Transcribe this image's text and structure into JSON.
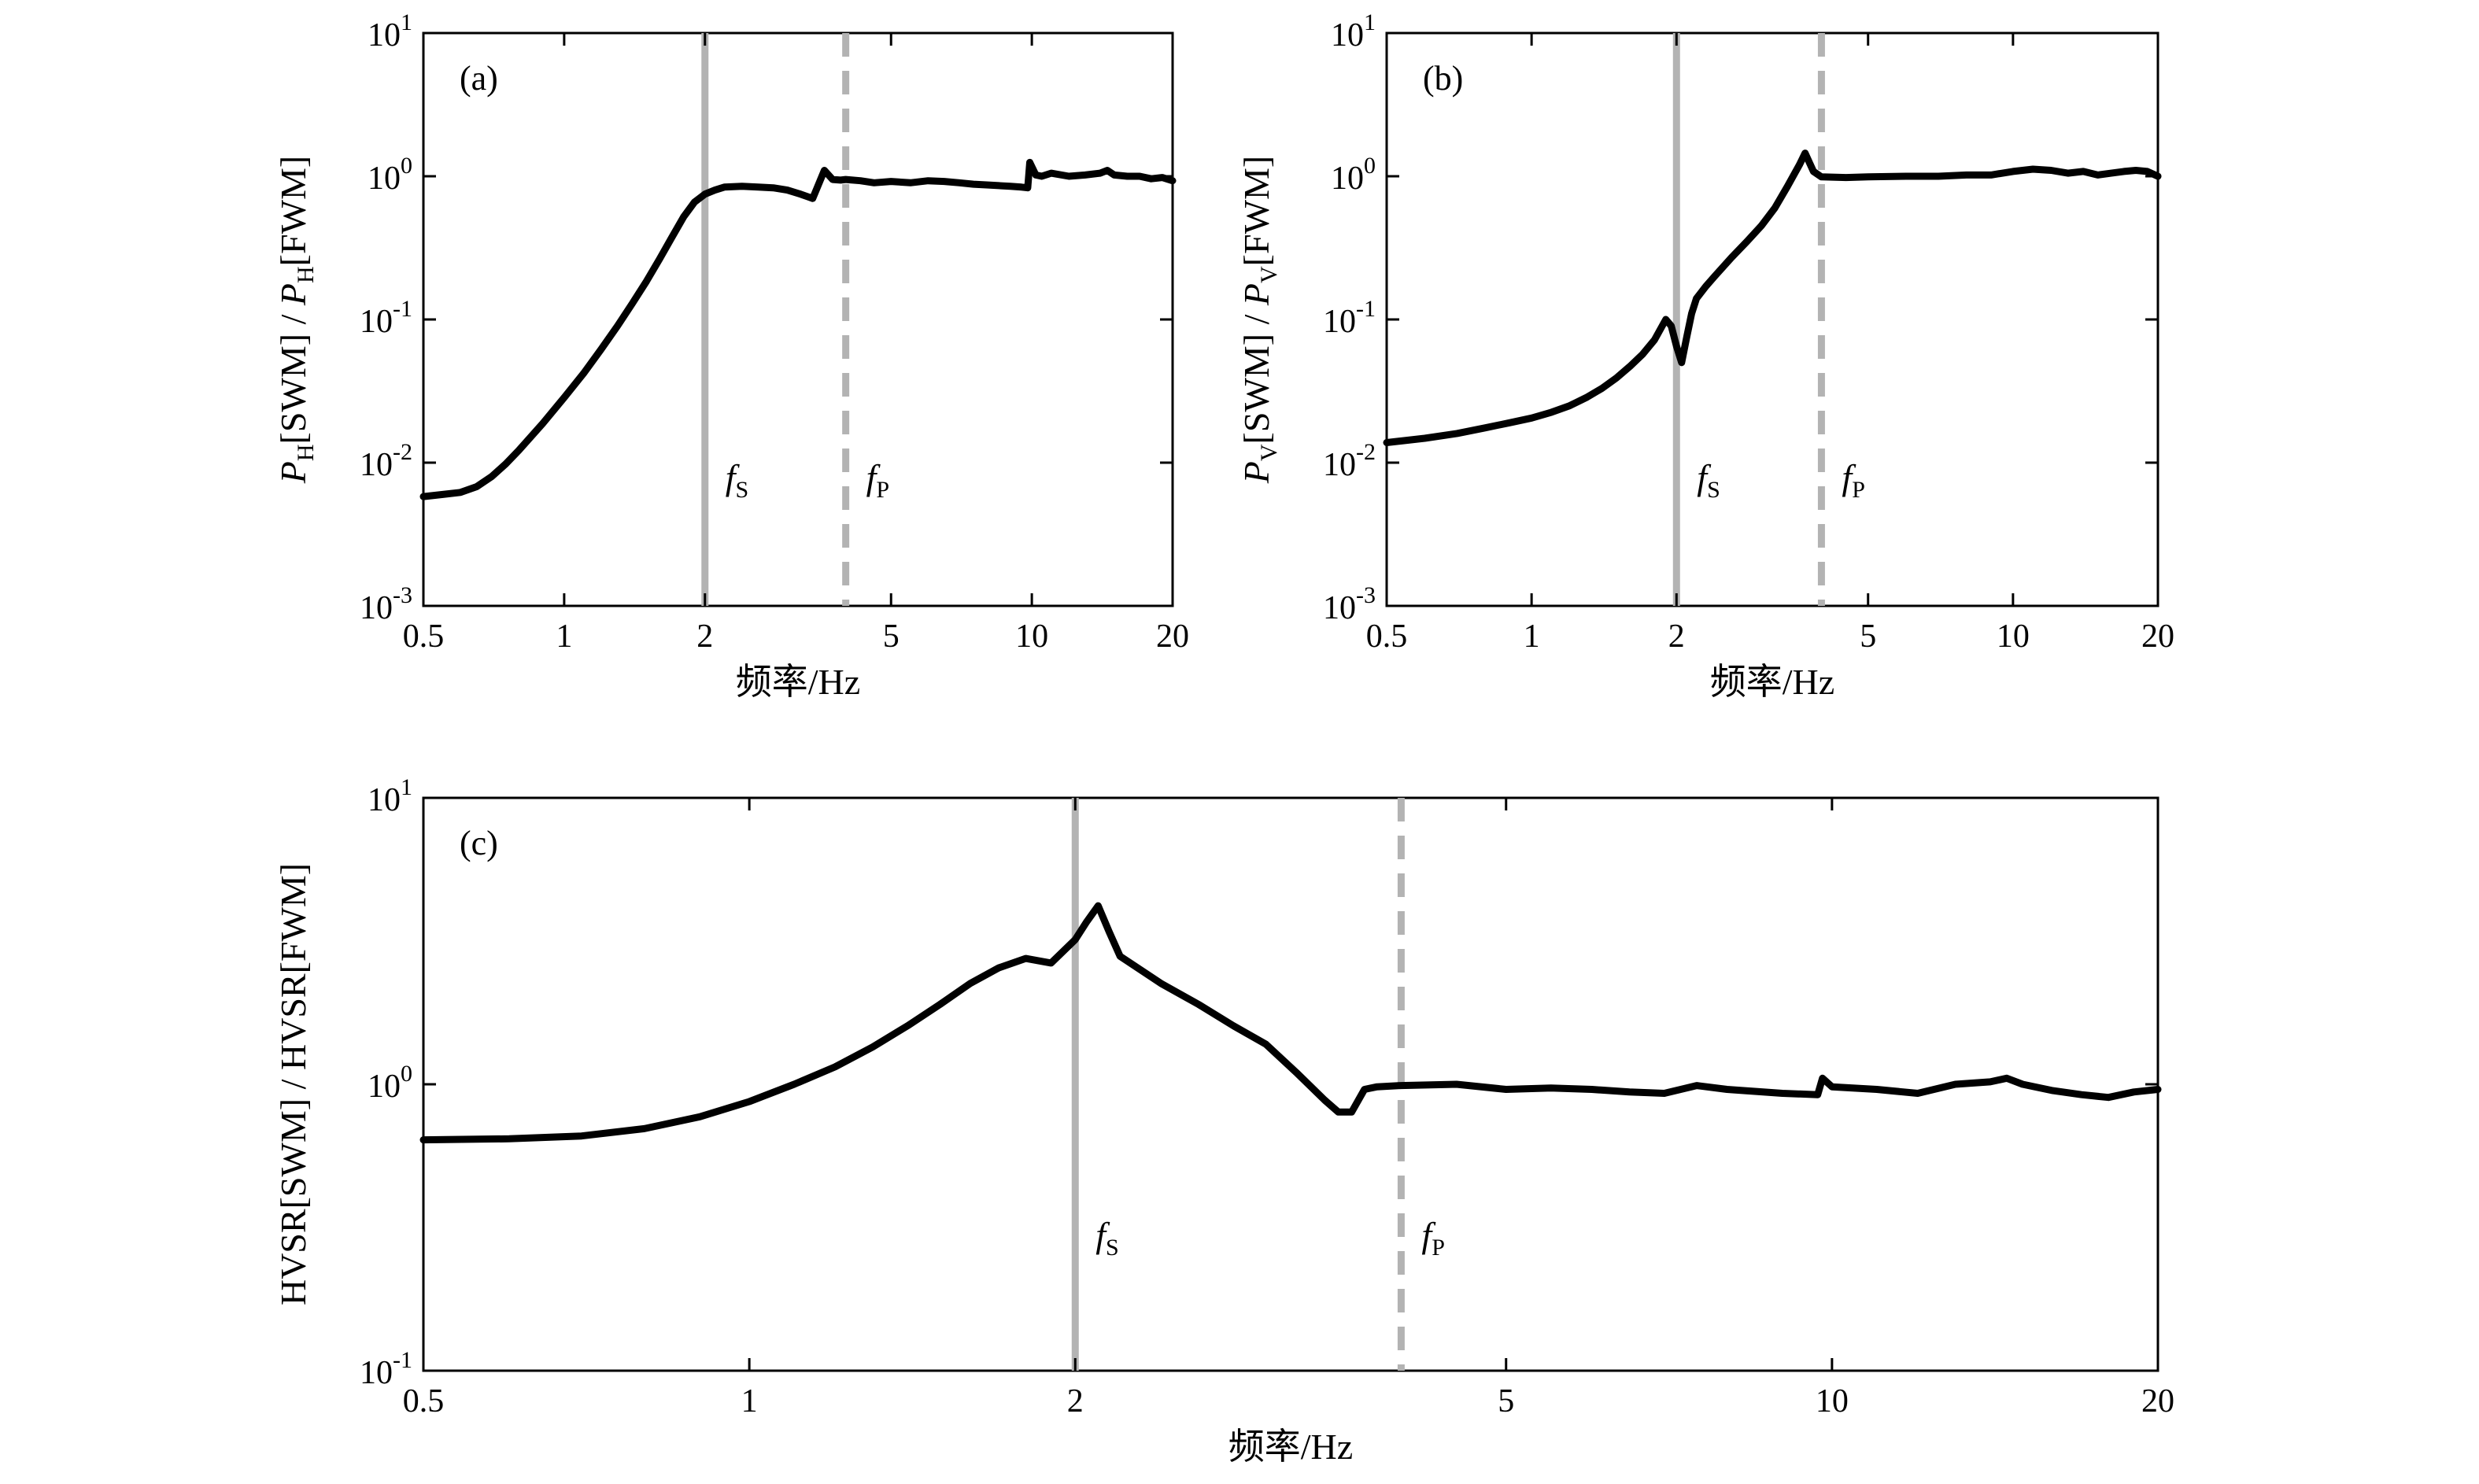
{
  "colors": {
    "curve": "#000000",
    "fs_line": "#b3b3b3",
    "fp_line": "#b3b3b3",
    "axes": "#000000",
    "background": "#ffffff"
  },
  "chart_data": [
    {
      "type": "line",
      "panel_label": "(a)",
      "xlabel": "频率/Hz",
      "ylabel": {
        "parts": [
          "P",
          "H",
          "[SWM] / ",
          "P",
          "H",
          "[FWM]"
        ]
      },
      "xscale": "log",
      "yscale": "log",
      "xlim": [
        0.5,
        20
      ],
      "ylim": [
        0.001,
        10
      ],
      "xticks": [
        0.5,
        1,
        2,
        5,
        10,
        20
      ],
      "xtick_labels": [
        "0.5",
        "1",
        "2",
        "5",
        "10",
        "20"
      ],
      "yticks": [
        0.001,
        0.01,
        0.1,
        1,
        10
      ],
      "ytick_labels": [
        {
          "base": "10",
          "exp": "-3"
        },
        {
          "base": "10",
          "exp": "-2"
        },
        {
          "base": "10",
          "exp": "-1"
        },
        {
          "base": "10",
          "exp": "0"
        },
        {
          "base": "10",
          "exp": "1"
        }
      ],
      "markers": [
        {
          "name": "f_S",
          "symbol": "f",
          "sub": "S",
          "x": 2.0,
          "style": "solid",
          "label_y": 0.0065
        },
        {
          "name": "f_P",
          "symbol": "f",
          "sub": "P",
          "x": 4.0,
          "style": "dashed",
          "label_y": 0.0065
        }
      ],
      "series": [
        {
          "x": [
            0.5,
            0.55,
            0.6,
            0.65,
            0.7,
            0.75,
            0.8,
            0.9,
            1.0,
            1.1,
            1.2,
            1.3,
            1.4,
            1.5,
            1.6,
            1.7,
            1.8,
            1.9,
            2.0,
            2.1,
            2.2,
            2.4,
            2.6,
            2.8,
            3.0,
            3.2,
            3.4,
            3.6,
            3.75,
            3.9,
            4.0,
            4.3,
            4.6,
            5.0,
            5.5,
            6.0,
            6.5,
            7.0,
            7.5,
            8.0,
            8.5,
            9.0,
            9.5,
            9.8,
            9.9,
            10.2,
            10.5,
            11.0,
            12.0,
            13.0,
            14.0,
            14.5,
            15.0,
            16.0,
            17.0,
            18.0,
            19.0,
            20.0
          ],
          "y": [
            0.0058,
            0.006,
            0.0062,
            0.0068,
            0.008,
            0.0098,
            0.0122,
            0.0188,
            0.0285,
            0.042,
            0.062,
            0.09,
            0.13,
            0.185,
            0.265,
            0.375,
            0.52,
            0.66,
            0.75,
            0.8,
            0.84,
            0.85,
            0.84,
            0.83,
            0.8,
            0.75,
            0.7,
            1.1,
            0.95,
            0.94,
            0.95,
            0.93,
            0.9,
            0.92,
            0.9,
            0.93,
            0.92,
            0.9,
            0.88,
            0.87,
            0.86,
            0.85,
            0.84,
            0.83,
            1.25,
            1.02,
            1.0,
            1.05,
            1.0,
            1.02,
            1.05,
            1.1,
            1.02,
            1.0,
            1.0,
            0.96,
            0.98,
            0.93
          ]
        }
      ]
    },
    {
      "type": "line",
      "panel_label": "(b)",
      "xlabel": "频率/Hz",
      "ylabel": {
        "parts": [
          "P",
          "V",
          "[SWM] / ",
          "P",
          "V",
          "[FWM]"
        ]
      },
      "xscale": "log",
      "yscale": "log",
      "xlim": [
        0.5,
        20
      ],
      "ylim": [
        0.001,
        10
      ],
      "xticks": [
        0.5,
        1,
        2,
        5,
        10,
        20
      ],
      "xtick_labels": [
        "0.5",
        "1",
        "2",
        "5",
        "10",
        "20"
      ],
      "yticks": [
        0.001,
        0.01,
        0.1,
        1,
        10
      ],
      "ytick_labels": [
        {
          "base": "10",
          "exp": "-3"
        },
        {
          "base": "10",
          "exp": "-2"
        },
        {
          "base": "10",
          "exp": "-1"
        },
        {
          "base": "10",
          "exp": "0"
        },
        {
          "base": "10",
          "exp": "1"
        }
      ],
      "markers": [
        {
          "name": "f_S",
          "symbol": "f",
          "sub": "S",
          "x": 2.0,
          "style": "solid",
          "label_y": 0.0065
        },
        {
          "name": "f_P",
          "symbol": "f",
          "sub": "P",
          "x": 4.0,
          "style": "dashed",
          "label_y": 0.0065
        }
      ],
      "series": [
        {
          "x": [
            0.5,
            0.6,
            0.7,
            0.8,
            0.9,
            1.0,
            1.1,
            1.2,
            1.3,
            1.4,
            1.5,
            1.6,
            1.7,
            1.8,
            1.9,
            1.95,
            2.0,
            2.05,
            2.1,
            2.15,
            2.2,
            2.3,
            2.4,
            2.6,
            2.8,
            3.0,
            3.2,
            3.4,
            3.6,
            3.7,
            3.85,
            4.0,
            4.5,
            5.0,
            6.0,
            7.0,
            8.0,
            9.0,
            10.0,
            11.0,
            12.0,
            13.0,
            14.0,
            15.0,
            16.0,
            17.0,
            18.0,
            19.0,
            20.0
          ],
          "y": [
            0.0138,
            0.0148,
            0.016,
            0.0175,
            0.019,
            0.0205,
            0.0225,
            0.025,
            0.0285,
            0.033,
            0.039,
            0.047,
            0.057,
            0.072,
            0.1,
            0.09,
            0.065,
            0.05,
            0.075,
            0.11,
            0.14,
            0.17,
            0.2,
            0.27,
            0.35,
            0.45,
            0.6,
            0.85,
            1.2,
            1.45,
            1.08,
            0.99,
            0.98,
            0.99,
            1.0,
            1.0,
            1.02,
            1.02,
            1.08,
            1.12,
            1.1,
            1.05,
            1.08,
            1.02,
            1.05,
            1.08,
            1.1,
            1.08,
            1.0
          ]
        }
      ]
    },
    {
      "type": "line",
      "panel_label": "(c)",
      "xlabel": "频率/Hz",
      "ylabel": {
        "parts": [
          "HVSR[SWM] / HVSR[FWM]"
        ]
      },
      "xscale": "log",
      "yscale": "log",
      "xlim": [
        0.5,
        20
      ],
      "ylim": [
        0.1,
        10
      ],
      "xticks": [
        0.5,
        1,
        2,
        5,
        10,
        20
      ],
      "xtick_labels": [
        "0.5",
        "1",
        "2",
        "5",
        "10",
        "20"
      ],
      "yticks": [
        0.1,
        1,
        10
      ],
      "ytick_labels": [
        {
          "base": "10",
          "exp": "-1"
        },
        {
          "base": "10",
          "exp": "0"
        },
        {
          "base": "10",
          "exp": "1"
        }
      ],
      "markers": [
        {
          "name": "f_S",
          "symbol": "f",
          "sub": "S",
          "x": 2.0,
          "style": "solid",
          "label_y": 0.27
        },
        {
          "name": "f_P",
          "symbol": "f",
          "sub": "P",
          "x": 4.0,
          "style": "dashed",
          "label_y": 0.27
        }
      ],
      "series": [
        {
          "x": [
            0.5,
            0.6,
            0.7,
            0.8,
            0.9,
            1.0,
            1.1,
            1.2,
            1.3,
            1.4,
            1.5,
            1.6,
            1.7,
            1.8,
            1.9,
            2.0,
            2.05,
            2.1,
            2.15,
            2.2,
            2.4,
            2.6,
            2.8,
            3.0,
            3.2,
            3.4,
            3.5,
            3.6,
            3.7,
            3.8,
            4.0,
            4.5,
            5.0,
            5.5,
            6.0,
            6.5,
            7.0,
            7.5,
            8.0,
            9.0,
            9.7,
            9.8,
            10.0,
            11.0,
            12.0,
            13.0,
            14.0,
            14.5,
            15.0,
            16.0,
            17.0,
            18.0,
            19.0,
            20.0
          ],
          "y": [
            0.64,
            0.645,
            0.66,
            0.7,
            0.77,
            0.87,
            1.0,
            1.15,
            1.35,
            1.6,
            1.9,
            2.25,
            2.55,
            2.75,
            2.65,
            3.2,
            3.7,
            4.2,
            3.4,
            2.8,
            2.25,
            1.9,
            1.6,
            1.38,
            1.1,
            0.88,
            0.8,
            0.8,
            0.96,
            0.98,
            0.99,
            1.0,
            0.96,
            0.97,
            0.96,
            0.94,
            0.93,
            0.99,
            0.96,
            0.93,
            0.92,
            1.05,
            0.98,
            0.96,
            0.93,
            1.0,
            1.02,
            1.05,
            1.0,
            0.95,
            0.92,
            0.9,
            0.94,
            0.96
          ]
        }
      ]
    }
  ]
}
